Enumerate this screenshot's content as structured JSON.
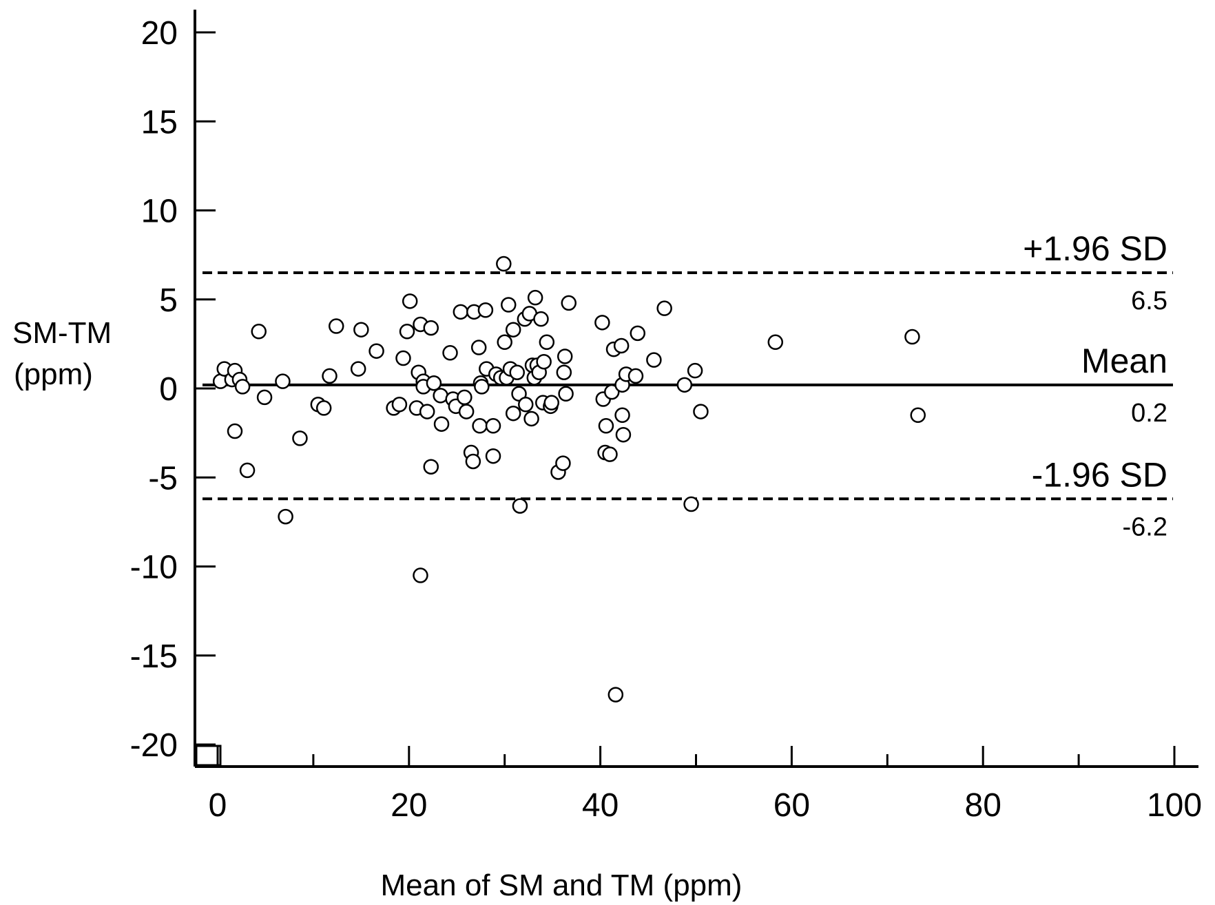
{
  "chart_data": {
    "type": "scatter",
    "title": "",
    "xlabel": "Mean of SM and TM (ppm)",
    "ylabel_line1": "SM-TM",
    "ylabel_line2": "(ppm)",
    "xlim": [
      0,
      100
    ],
    "ylim": [
      -20,
      20
    ],
    "xticks": [
      0,
      20,
      40,
      60,
      80,
      100
    ],
    "xtick_labels": [
      "0",
      "20",
      "40",
      "60",
      "80",
      "100"
    ],
    "yticks": [
      20,
      15,
      10,
      5,
      0,
      -5,
      -10,
      -15,
      -20
    ],
    "ytick_labels": [
      "20",
      "15",
      "10",
      "5",
      "0",
      "-5",
      "-10",
      "-15",
      "-20"
    ],
    "grid": false,
    "reference_lines": [
      {
        "name": "+1.96 SD",
        "value": 6.5,
        "value_label": "6.5",
        "style": "dashed"
      },
      {
        "name": "Mean",
        "value": 0.2,
        "value_label": "0.2",
        "style": "solid"
      },
      {
        "name": "-1.96 SD",
        "value": -6.2,
        "value_label": "-6.2",
        "style": "dashed"
      }
    ],
    "points": [
      [
        0.3,
        0.4
      ],
      [
        0.7,
        1.1
      ],
      [
        1.5,
        0.5
      ],
      [
        1.8,
        1.0
      ],
      [
        2.3,
        0.5
      ],
      [
        2.6,
        0.1
      ],
      [
        1.8,
        -2.4
      ],
      [
        3.1,
        -4.6
      ],
      [
        4.3,
        3.2
      ],
      [
        4.9,
        -0.5
      ],
      [
        6.8,
        0.4
      ],
      [
        7.1,
        -7.2
      ],
      [
        8.6,
        -2.8
      ],
      [
        10.5,
        -0.9
      ],
      [
        11.1,
        -1.1
      ],
      [
        11.7,
        0.7
      ],
      [
        12.4,
        3.5
      ],
      [
        14.7,
        1.1
      ],
      [
        15.0,
        3.3
      ],
      [
        16.6,
        2.1
      ],
      [
        18.4,
        -1.1
      ],
      [
        19.0,
        -0.9
      ],
      [
        19.4,
        1.7
      ],
      [
        19.8,
        3.2
      ],
      [
        20.1,
        4.9
      ],
      [
        20.8,
        -1.1
      ],
      [
        21.0,
        0.9
      ],
      [
        21.2,
        3.6
      ],
      [
        21.5,
        0.4
      ],
      [
        21.5,
        0.1
      ],
      [
        21.9,
        -1.3
      ],
      [
        22.3,
        3.4
      ],
      [
        22.3,
        -4.4
      ],
      [
        22.6,
        0.3
      ],
      [
        23.3,
        -0.4
      ],
      [
        23.4,
        -2.0
      ],
      [
        24.3,
        2.0
      ],
      [
        24.6,
        -0.6
      ],
      [
        24.9,
        -1.0
      ],
      [
        25.4,
        4.3
      ],
      [
        25.8,
        -0.5
      ],
      [
        26.0,
        -1.3
      ],
      [
        26.5,
        -3.6
      ],
      [
        26.7,
        -4.1
      ],
      [
        26.8,
        4.3
      ],
      [
        27.3,
        2.3
      ],
      [
        27.4,
        -2.1
      ],
      [
        27.5,
        0.3
      ],
      [
        27.6,
        0.1
      ],
      [
        28.0,
        4.4
      ],
      [
        28.1,
        1.1
      ],
      [
        28.8,
        -2.1
      ],
      [
        28.8,
        -3.8
      ],
      [
        29.1,
        0.8
      ],
      [
        29.6,
        0.6
      ],
      [
        29.9,
        7.0
      ],
      [
        30.0,
        2.6
      ],
      [
        30.2,
        0.6
      ],
      [
        30.4,
        4.7
      ],
      [
        30.6,
        1.1
      ],
      [
        30.9,
        3.3
      ],
      [
        30.9,
        -1.4
      ],
      [
        31.3,
        0.9
      ],
      [
        31.5,
        -0.3
      ],
      [
        31.6,
        -6.6
      ],
      [
        32.1,
        3.9
      ],
      [
        32.2,
        -0.9
      ],
      [
        32.6,
        4.2
      ],
      [
        32.8,
        -1.7
      ],
      [
        32.9,
        1.3
      ],
      [
        33.1,
        0.6
      ],
      [
        33.2,
        5.1
      ],
      [
        33.4,
        1.3
      ],
      [
        33.6,
        0.9
      ],
      [
        33.8,
        3.9
      ],
      [
        34.0,
        -0.8
      ],
      [
        34.1,
        1.5
      ],
      [
        34.4,
        2.6
      ],
      [
        34.8,
        -1.0
      ],
      [
        34.9,
        -0.8
      ],
      [
        35.6,
        -4.7
      ],
      [
        36.1,
        -4.2
      ],
      [
        36.2,
        0.9
      ],
      [
        36.3,
        1.8
      ],
      [
        36.4,
        -0.3
      ],
      [
        36.7,
        4.8
      ],
      [
        40.2,
        3.7
      ],
      [
        40.3,
        -0.6
      ],
      [
        40.5,
        -3.6
      ],
      [
        40.6,
        -2.1
      ],
      [
        41.0,
        -3.7
      ],
      [
        41.2,
        -0.2
      ],
      [
        41.4,
        2.2
      ],
      [
        41.6,
        -17.2
      ],
      [
        42.2,
        2.4
      ],
      [
        42.3,
        0.2
      ],
      [
        42.3,
        -1.5
      ],
      [
        42.4,
        -2.6
      ],
      [
        42.7,
        0.8
      ],
      [
        43.7,
        0.7
      ],
      [
        43.9,
        3.1
      ],
      [
        45.6,
        1.6
      ],
      [
        46.7,
        4.5
      ],
      [
        48.8,
        0.2
      ],
      [
        49.5,
        -6.5
      ],
      [
        49.9,
        1.0
      ],
      [
        50.5,
        -1.3
      ],
      [
        58.3,
        2.6
      ],
      [
        72.6,
        2.9
      ],
      [
        73.2,
        -1.5
      ],
      [
        21.2,
        -10.5
      ]
    ]
  }
}
